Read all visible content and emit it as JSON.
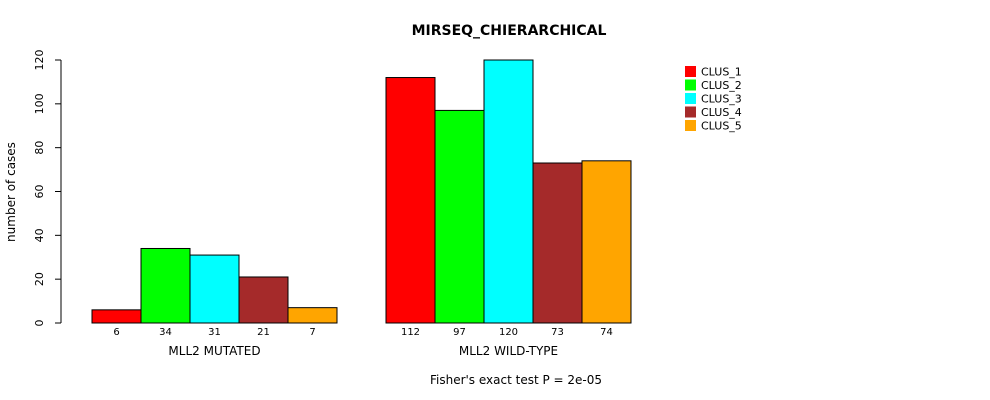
{
  "chart_data": {
    "type": "bar",
    "title": "MIRSEQ_CHIERARCHICAL",
    "ylabel": "number of cases",
    "ylim": [
      0,
      120
    ],
    "yticks": [
      0,
      20,
      40,
      60,
      80,
      100,
      120
    ],
    "groups": [
      {
        "label": "MLL2 MUTATED",
        "values": [
          6,
          34,
          31,
          21,
          7
        ]
      },
      {
        "label": "MLL2 WILD-TYPE",
        "values": [
          112,
          97,
          120,
          73,
          74
        ]
      }
    ],
    "series": [
      {
        "name": "CLUS_1",
        "color": "#ff0000"
      },
      {
        "name": "CLUS_2",
        "color": "#00ff00"
      },
      {
        "name": "CLUS_3",
        "color": "#00ffff"
      },
      {
        "name": "CLUS_4",
        "color": "#a52a2a"
      },
      {
        "name": "CLUS_5",
        "color": "#ffa500"
      }
    ],
    "footnote": "Fisher's exact test P = 2e-05",
    "legend_position": "top-right"
  }
}
